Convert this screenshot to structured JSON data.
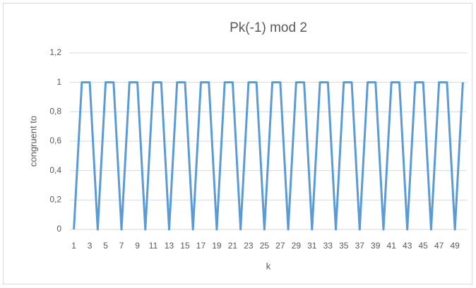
{
  "chart_data": {
    "type": "line",
    "title": "Pk(-1) mod 2",
    "x_label": "k",
    "y_label": "congruent to",
    "categories": [
      1,
      null,
      3,
      null,
      5,
      null,
      7,
      null,
      9,
      null,
      11,
      null,
      13,
      null,
      15,
      null,
      17,
      null,
      19,
      null,
      21,
      null,
      23,
      null,
      25,
      null,
      27,
      null,
      29,
      null,
      31,
      null,
      33,
      null,
      35,
      null,
      37,
      null,
      39,
      null,
      41,
      null,
      43,
      null,
      45,
      null,
      47,
      null,
      49,
      null
    ],
    "series": [
      {
        "name": "Pk(-1) mod 2",
        "color": "#5b9bd5",
        "values": [
          0,
          1,
          1,
          0,
          1,
          1,
          0,
          1,
          1,
          0,
          1,
          1,
          0,
          1,
          1,
          0,
          1,
          1,
          0,
          1,
          1,
          0,
          1,
          1,
          0,
          1,
          1,
          0,
          1,
          1,
          0,
          1,
          1,
          0,
          1,
          1,
          0,
          1,
          1,
          0,
          1,
          1,
          0,
          1,
          1,
          0,
          1,
          1,
          0,
          1
        ]
      }
    ],
    "ylim": [
      0,
      1.2
    ],
    "yticks": [
      0,
      {
        "value": 0.2,
        "label": "0,2"
      },
      {
        "value": 0.4,
        "label": "0,4"
      },
      {
        "value": 0.6,
        "label": "0,6"
      },
      {
        "value": 0.8,
        "label": "0,8"
      },
      1,
      {
        "value": 1.2,
        "label": "1,2"
      }
    ],
    "grid": true
  }
}
